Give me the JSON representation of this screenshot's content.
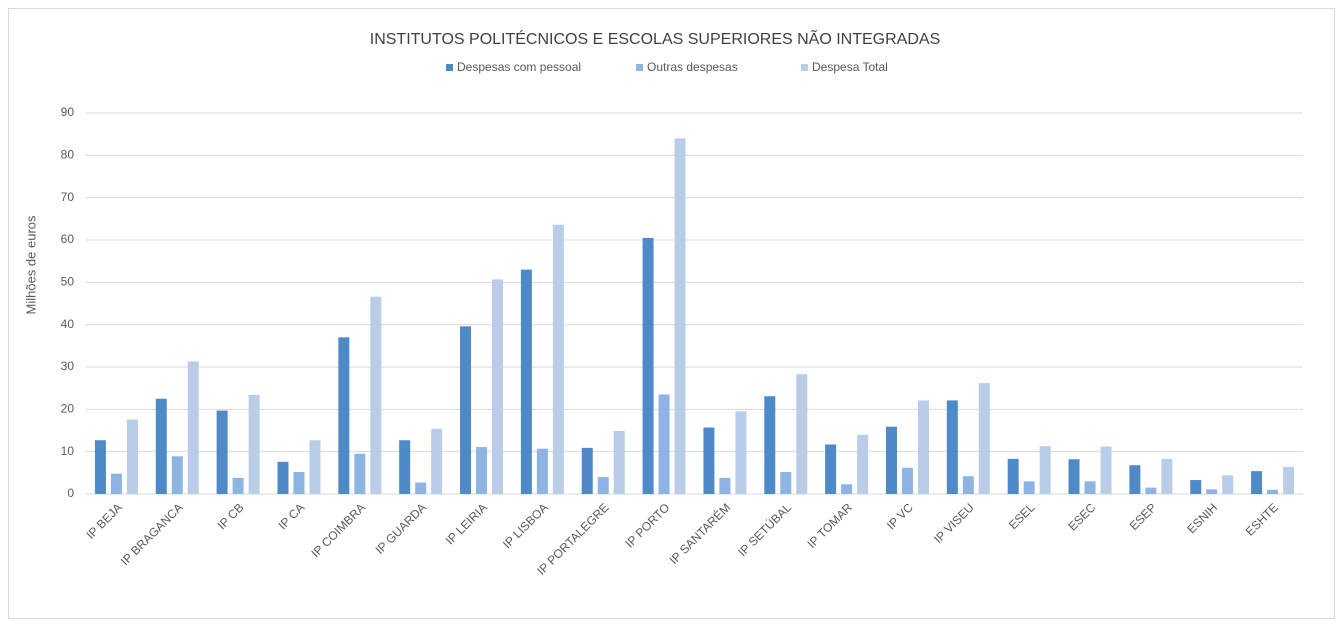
{
  "chart_data": {
    "type": "bar",
    "title": "INSTITUTOS POLITÉCNICOS E ESCOLAS SUPERIORES NÃO INTEGRADAS",
    "y_label": "Milhões de euros",
    "categories": [
      "IP BEJA",
      "IP BRAGANCA",
      "IP CB",
      "IP CA",
      "IP COIMBRA",
      "IP GUARDA",
      "IP LEIRIA",
      "IP LISBOA",
      "IP PORTALEGRE",
      "IP PORTO",
      "IP SANTARÉM",
      "IP SETÚBAL",
      "IP TOMAR",
      "IP VC",
      "IP VISEU",
      "ESEL",
      "ESEC",
      "ESEP",
      "ESNIH",
      "ESHTE"
    ],
    "series": [
      {
        "name": "Despesas com pessoal",
        "color": "#4f8ac8",
        "values": [
          12.7,
          22.5,
          19.7,
          7.6,
          37.0,
          12.7,
          39.6,
          53.0,
          10.9,
          60.5,
          15.7,
          23.1,
          11.7,
          15.9,
          22.1,
          8.3,
          8.2,
          6.8,
          3.3,
          5.4
        ]
      },
      {
        "name": "Outras despesas",
        "color": "#8eb4e3",
        "values": [
          4.8,
          8.9,
          3.8,
          5.2,
          9.5,
          2.7,
          11.1,
          10.7,
          4.0,
          23.5,
          3.8,
          5.2,
          2.3,
          6.2,
          4.2,
          3.0,
          3.0,
          1.5,
          1.1,
          1.0
        ]
      },
      {
        "name": "Despesa Total",
        "color": "#b9cde9",
        "values": [
          17.6,
          31.3,
          23.4,
          12.7,
          46.6,
          15.4,
          50.7,
          63.6,
          14.9,
          84.0,
          19.5,
          28.3,
          14.0,
          22.1,
          26.2,
          11.3,
          11.2,
          8.3,
          4.4,
          6.4
        ]
      }
    ],
    "ylim": [
      0,
      90
    ],
    "yticks": [
      0,
      10,
      20,
      30,
      40,
      50,
      60,
      70,
      80,
      90
    ],
    "grid": true,
    "legend": "top"
  }
}
